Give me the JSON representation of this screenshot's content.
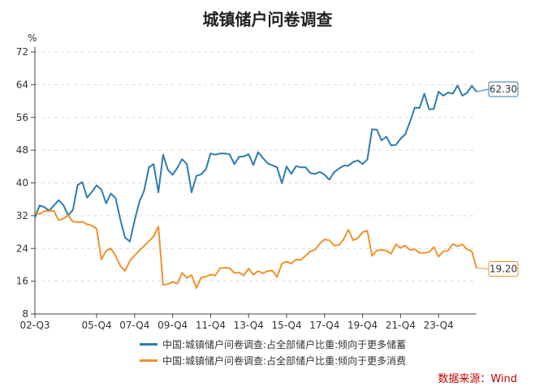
{
  "chart_data": {
    "type": "line",
    "title": "城镇储户问卷调查",
    "ylabel": "%",
    "ylim": [
      8,
      72
    ],
    "yticks": [
      "8",
      "16",
      "24",
      "32",
      "40",
      "48",
      "56",
      "64",
      "72"
    ],
    "xticks": [
      "02-Q3",
      "05-Q4",
      "07-Q4",
      "09-Q4",
      "11-Q4",
      "13-Q4",
      "15-Q4",
      "17-Q4",
      "19-Q4",
      "21-Q4",
      "23-Q4"
    ],
    "xtick_index": [
      0,
      13,
      21,
      29,
      37,
      45,
      53,
      61,
      69,
      77,
      85
    ],
    "grid": true,
    "series": [
      {
        "name": "中国:城镇储户问卷调查:占全部储户比重:倾向于更多储蓄",
        "color": "#2e7bb0",
        "end_label": "62.30",
        "values": [
          31.5,
          34.5,
          34.1,
          33.2,
          34.5,
          35.8,
          34.6,
          32.1,
          33.4,
          39.5,
          40.2,
          36.4,
          37.8,
          39.4,
          38.4,
          35.0,
          37.4,
          36.3,
          31.0,
          26.6,
          25.7,
          30.8,
          35.4,
          38.1,
          43.8,
          44.6,
          37.7,
          46.9,
          43.2,
          42.0,
          43.7,
          45.8,
          44.6,
          37.7,
          41.7,
          42.1,
          43.3,
          47.2,
          46.9,
          47.2,
          47.2,
          47.0,
          44.6,
          46.4,
          46.5,
          47.0,
          44.4,
          47.5,
          46.1,
          44.8,
          44.3,
          43.8,
          39.9,
          44.0,
          42.2,
          44.1,
          43.8,
          43.8,
          42.4,
          42.2,
          42.7,
          42.0,
          40.8,
          42.6,
          43.5,
          44.2,
          44.2,
          45.1,
          45.5,
          44.6,
          45.7,
          53.1,
          53.0,
          50.4,
          51.3,
          49.2,
          49.3,
          50.8,
          51.9,
          55.0,
          58.4,
          58.3,
          61.8,
          58.0,
          58.1,
          62.3,
          61.3,
          62.1,
          61.8,
          63.8,
          61.3,
          62.0,
          63.7,
          62.3
        ]
      },
      {
        "name": "中国:城镇储户问卷调查:占全部储户比重:倾向于更多消费",
        "color": "#f0922b",
        "end_label": "19.20",
        "values": [
          33.0,
          32.4,
          33.1,
          33.1,
          33.2,
          30.9,
          31.3,
          32.1,
          30.5,
          30.4,
          30.5,
          29.9,
          29.6,
          28.8,
          21.3,
          23.4,
          24.0,
          22.2,
          19.7,
          18.5,
          21.0,
          22.3,
          23.5,
          24.6,
          25.8,
          26.9,
          29.4,
          15.1,
          15.3,
          15.8,
          15.4,
          18.0,
          16.8,
          17.5,
          14.3,
          16.9,
          17.1,
          17.6,
          17.4,
          19.2,
          19.3,
          19.2,
          18.0,
          18.1,
          17.4,
          19.1,
          17.6,
          18.5,
          17.9,
          18.5,
          18.6,
          17.0,
          20.3,
          20.8,
          20.3,
          21.3,
          21.2,
          22.2,
          23.3,
          23.7,
          25.2,
          26.2,
          26.0,
          24.7,
          24.8,
          26.2,
          28.6,
          26.0,
          26.5,
          28.0,
          28.3,
          22.2,
          23.5,
          23.6,
          23.5,
          22.7,
          25.0,
          24.1,
          24.7,
          23.6,
          23.8,
          22.9,
          22.9,
          23.1,
          24.3,
          22.0,
          23.3,
          23.5,
          25.1,
          24.5,
          25.0,
          23.8,
          23.3,
          19.2
        ]
      }
    ]
  },
  "source": "数据来源：Wind"
}
